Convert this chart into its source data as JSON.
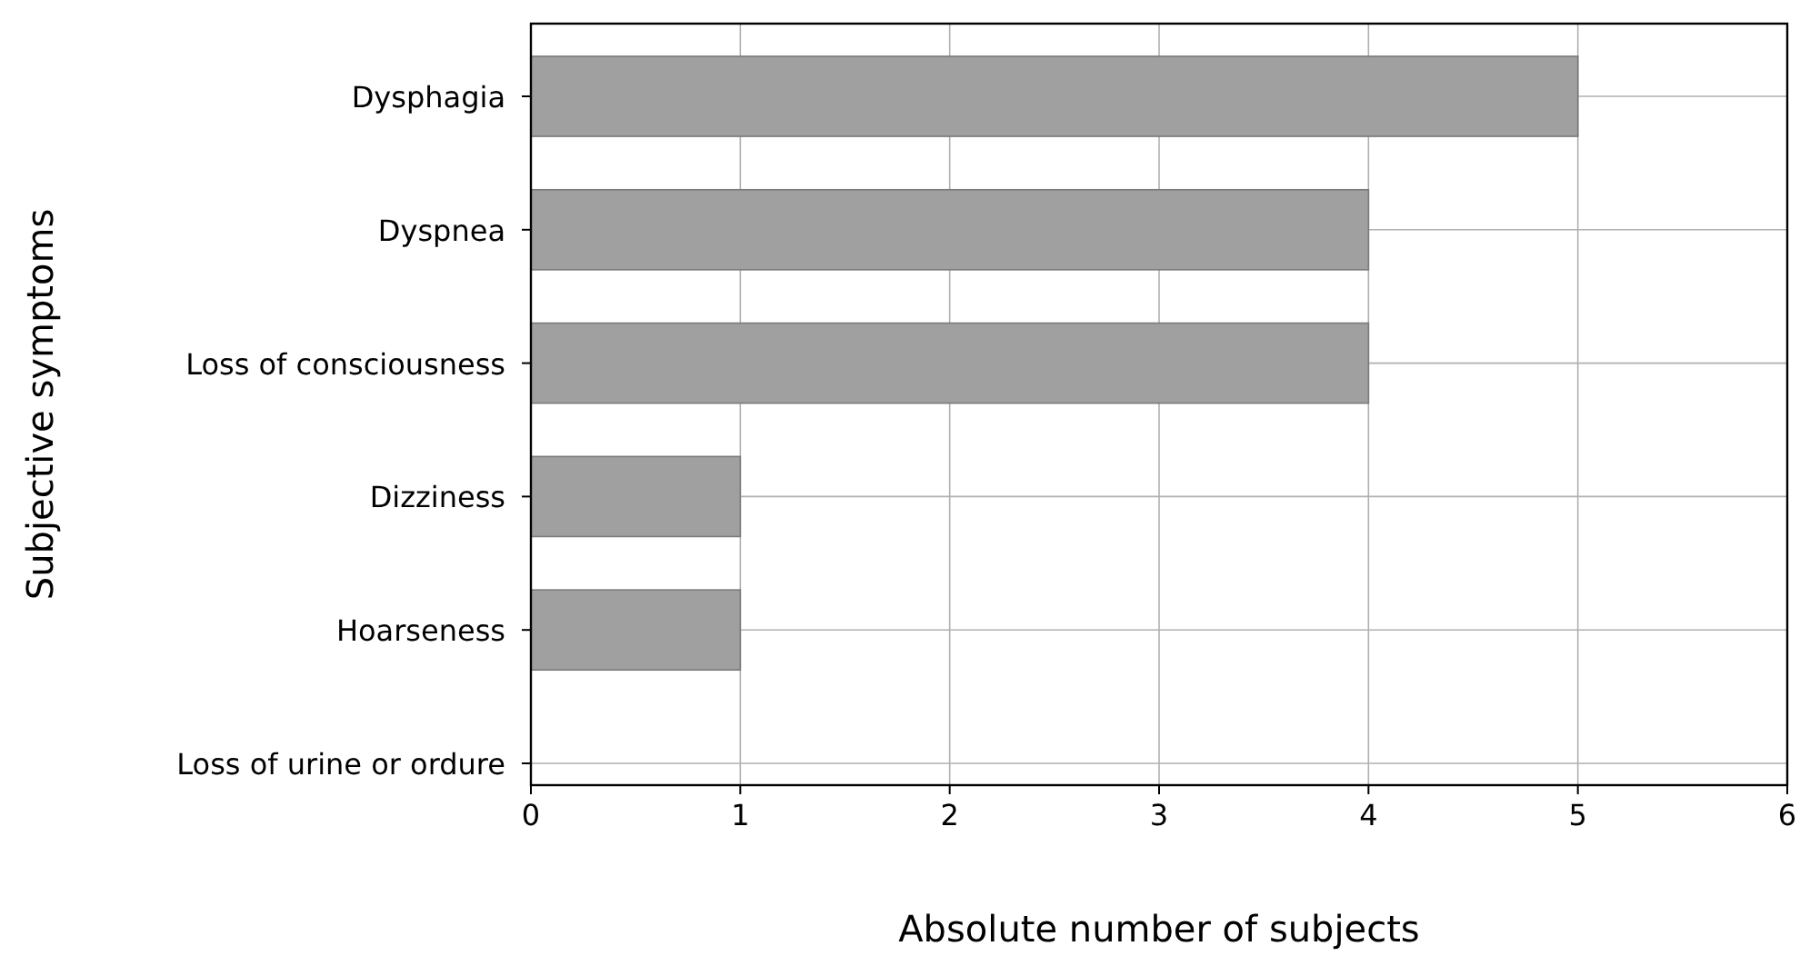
{
  "chart_data": {
    "type": "bar",
    "orientation": "horizontal",
    "xlabel": "Absolute number of subjects",
    "ylabel": "Subjective symptoms",
    "categories": [
      "Dysphagia",
      "Dyspnea",
      "Loss of consciousness",
      "Dizziness",
      "Hoarseness",
      "Loss of urine or ordure"
    ],
    "values": [
      5,
      4,
      4,
      1,
      1,
      0
    ],
    "color": "#a0a0a0",
    "xlim": [
      0,
      6
    ],
    "xticks": [
      0,
      1,
      2,
      3,
      4,
      5,
      6
    ],
    "grid": true
  }
}
